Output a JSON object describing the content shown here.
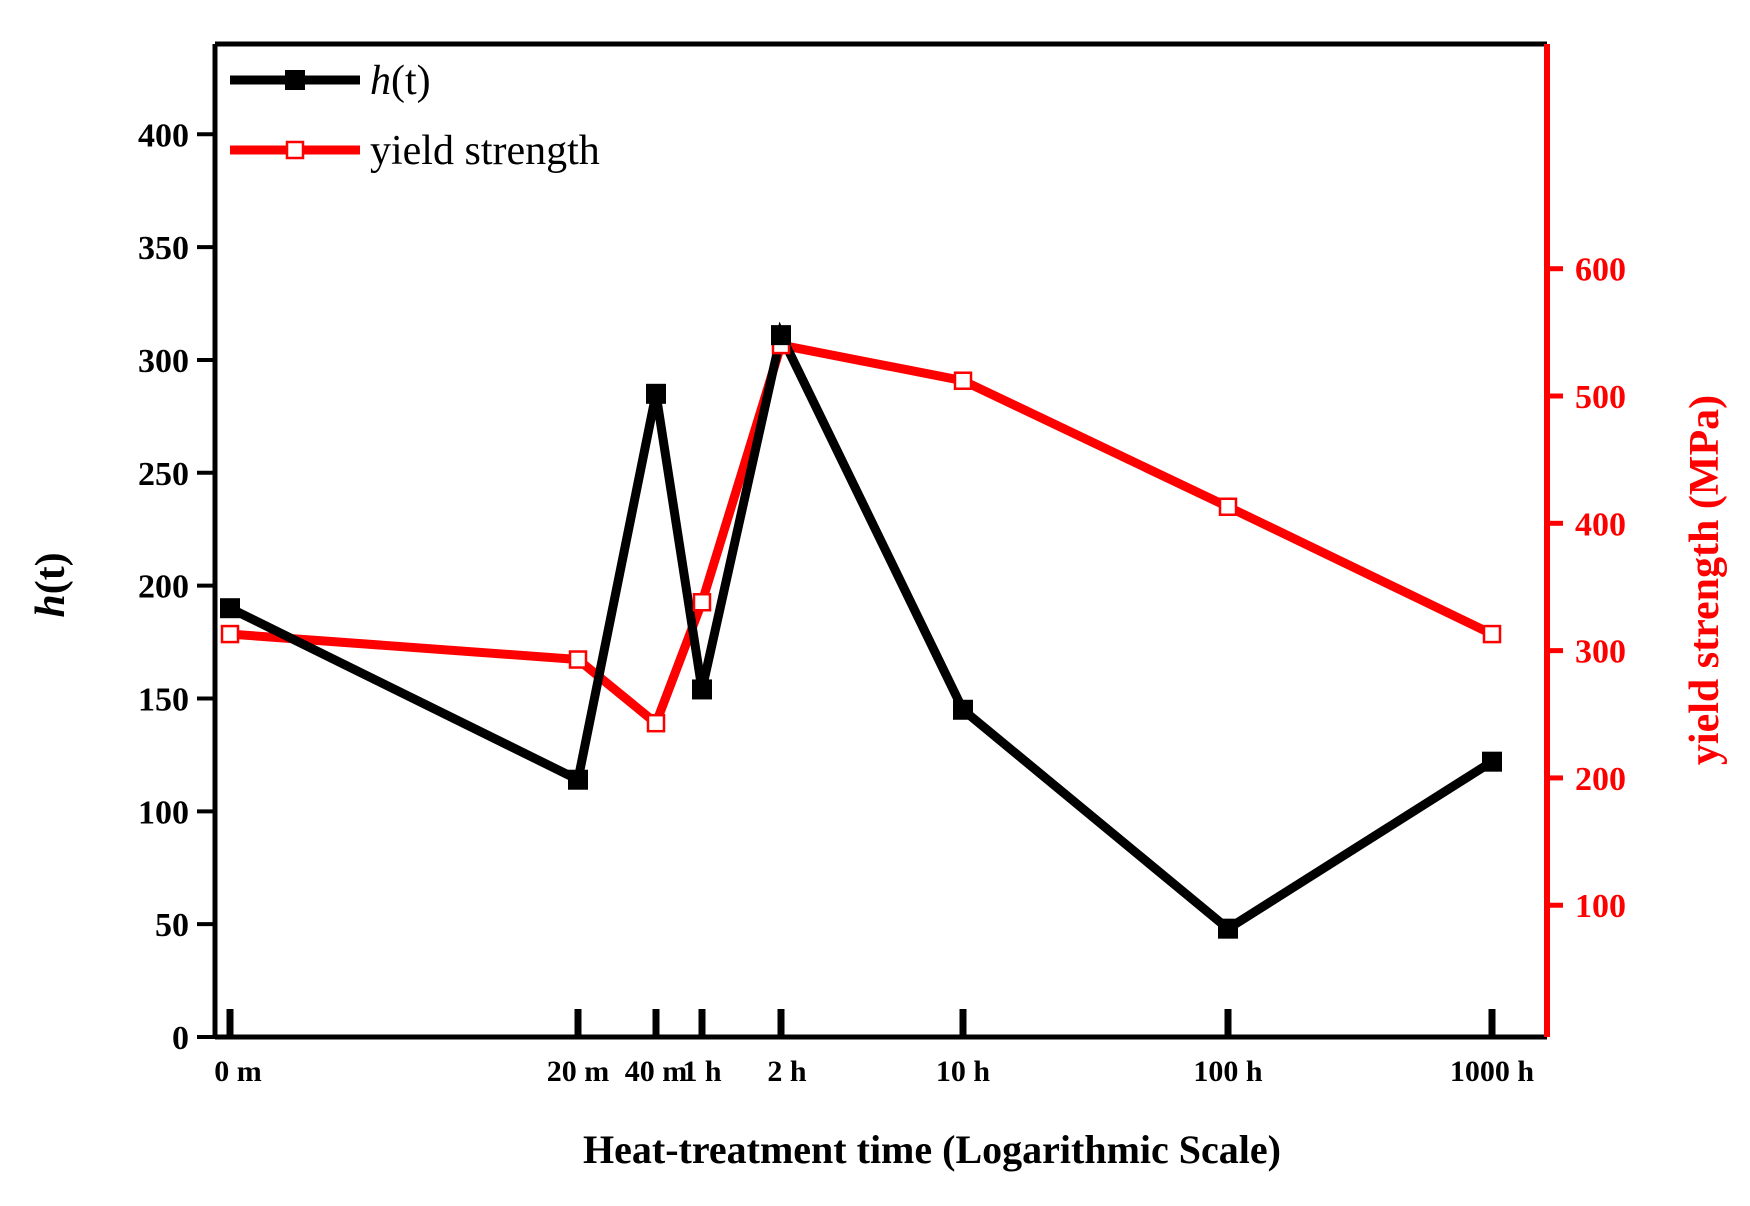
{
  "chart_data": {
    "type": "line",
    "title": "",
    "xlabel": "Heat-treatment time (Logarithmic Scale)",
    "ylabel_italic": "h",
    "ylabel_rest": "(t)",
    "y2label": "yield strength (MPa)",
    "categories": [
      "0 m",
      "20 m",
      "40 m",
      "1 h",
      "2 h",
      "10 h",
      "100 h",
      "1000 h"
    ],
    "ylim": [
      0,
      440
    ],
    "yticks": [
      0,
      50,
      100,
      150,
      200,
      250,
      300,
      350,
      400
    ],
    "y2lim": [
      -3.5,
      776.5
    ],
    "y2ticks": [
      100,
      200,
      300,
      400,
      500,
      600
    ],
    "legend_position": "top-left",
    "series": [
      {
        "name": "h(t)",
        "name_italic": "h",
        "name_rest": "(t)",
        "axis": "left",
        "color": "#000000",
        "marker": "filled-square",
        "values": [
          190,
          114,
          285,
          154,
          311,
          145,
          48,
          122
        ]
      },
      {
        "name": "yield strength",
        "axis": "right",
        "color": "#ff0000",
        "marker": "open-square",
        "values": [
          313,
          293,
          243,
          338,
          540,
          512,
          413,
          313
        ]
      }
    ]
  }
}
